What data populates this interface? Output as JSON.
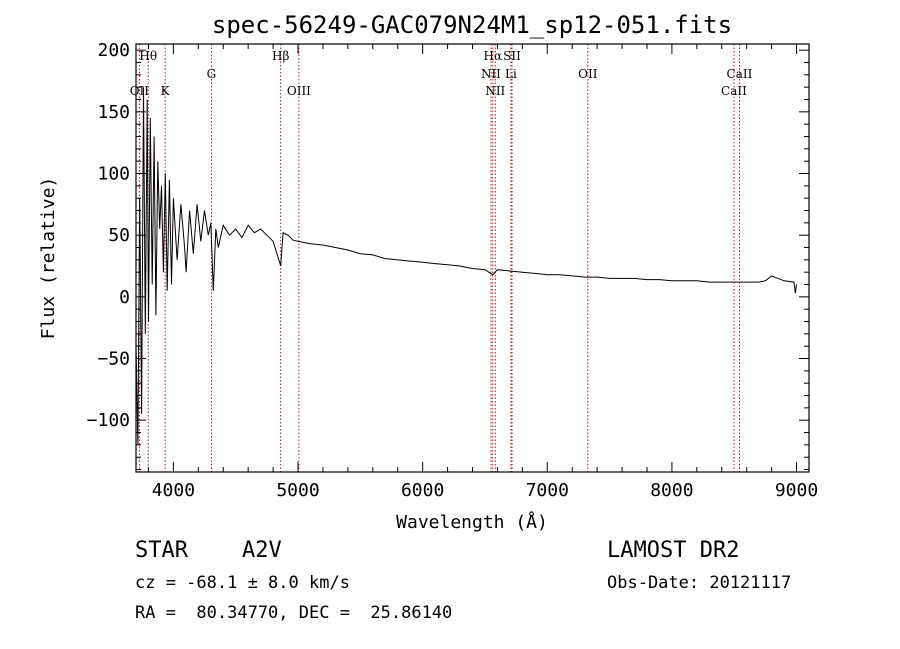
{
  "chart_data": {
    "type": "line",
    "title": "spec-56249-GAC079N24M1_sp12-051.fits",
    "xlabel": "Wavelength (Å)",
    "ylabel": "Flux (relative)",
    "xlim": [
      3700,
      9100
    ],
    "ylim": [
      -142,
      205
    ],
    "xticks": [
      4000,
      5000,
      6000,
      7000,
      8000,
      9000
    ],
    "yticks": [
      -100,
      -50,
      0,
      50,
      100,
      150,
      200
    ],
    "grid": false,
    "series": [
      {
        "x": [
          3700,
          3715,
          3730,
          3745,
          3760,
          3775,
          3790,
          3800,
          3815,
          3830,
          3845,
          3860,
          3875,
          3890,
          3905,
          3920,
          3935,
          3950,
          3968,
          3985,
          4000,
          4030,
          4060,
          4090,
          4102,
          4130,
          4160,
          4190,
          4220,
          4250,
          4280,
          4300,
          4320,
          4340,
          4360,
          4400,
          4450,
          4500,
          4550,
          4600,
          4650,
          4700,
          4750,
          4800,
          4861,
          4880,
          4920,
          4960,
          5000,
          5100,
          5200,
          5300,
          5400,
          5500,
          5600,
          5700,
          5800,
          5900,
          6000,
          6100,
          6200,
          6300,
          6400,
          6500,
          6563,
          6600,
          6700,
          6800,
          6900,
          7000,
          7100,
          7200,
          7300,
          7400,
          7500,
          7600,
          7700,
          7800,
          7900,
          8000,
          8100,
          8200,
          8300,
          8400,
          8500,
          8600,
          8700,
          8750,
          8800,
          8900,
          8980,
          8990,
          9000
        ],
        "y": [
          -40,
          -120,
          80,
          -95,
          170,
          -30,
          160,
          -20,
          145,
          10,
          130,
          -15,
          110,
          55,
          90,
          20,
          100,
          5,
          95,
          10,
          80,
          30,
          75,
          40,
          20,
          70,
          35,
          75,
          45,
          70,
          50,
          60,
          5,
          55,
          40,
          58,
          50,
          55,
          48,
          58,
          52,
          55,
          50,
          45,
          25,
          52,
          50,
          46,
          45,
          43,
          42,
          40,
          38,
          35,
          34,
          31,
          30,
          29,
          28,
          27,
          26,
          25,
          23,
          22,
          18,
          22,
          21,
          20,
          19,
          18,
          18,
          17,
          16,
          16,
          15,
          15,
          15,
          14,
          14,
          13,
          13,
          13,
          12,
          12,
          12,
          12,
          12,
          13,
          17,
          13,
          12,
          3,
          10
        ]
      }
    ],
    "lines": [
      {
        "label": "Hθ",
        "x": 3798,
        "row": "top"
      },
      {
        "label": "OII",
        "x": 3727,
        "row": "bottom"
      },
      {
        "label": "K",
        "x": 3934,
        "row": "bottom"
      },
      {
        "label": "G",
        "x": 4305,
        "row": "middle"
      },
      {
        "label": "Hβ",
        "x": 4861,
        "row": "top"
      },
      {
        "label": "OIII",
        "x": 5007,
        "row": "bottom"
      },
      {
        "label": "Hα",
        "x": 6563,
        "row": "top"
      },
      {
        "label": "SII",
        "x": 6717,
        "row": "top"
      },
      {
        "label": "NII",
        "x": 6548,
        "row": "middle"
      },
      {
        "label": "Li",
        "x": 6708,
        "row": "middle"
      },
      {
        "label": "NII",
        "x": 6583,
        "row": "bottom"
      },
      {
        "label": "OII",
        "x": 7325,
        "row": "middle"
      },
      {
        "label": "CaII",
        "x": 8542,
        "row": "middle"
      },
      {
        "label": "CaII",
        "x": 8498,
        "row": "bottom"
      }
    ]
  },
  "info": {
    "class": "STAR",
    "subclass": "A2V",
    "survey": "LAMOST DR2",
    "cz": "cz = -68.1 ± 8.0 km/s",
    "obs_date": "Obs-Date: 20121117",
    "coords": "RA =  80.34770, DEC =  25.86140"
  },
  "colors": {
    "line_marker": "#b00000",
    "spectrum": "#000000"
  }
}
